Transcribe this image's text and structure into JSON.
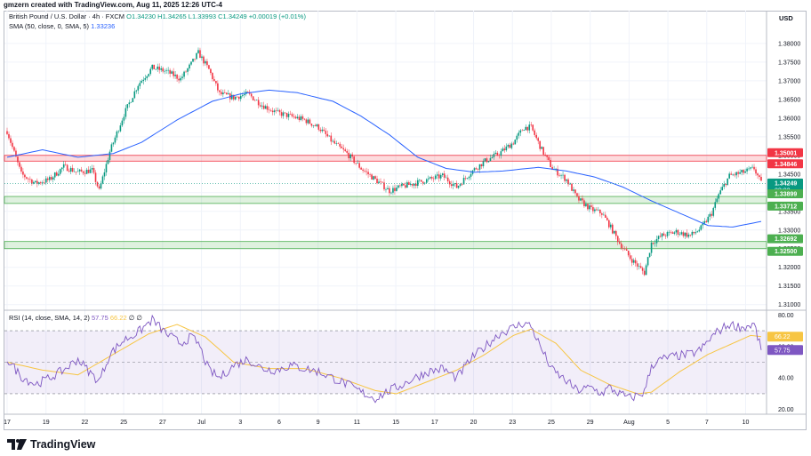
{
  "header_text": "gmzern created with TradingView.com, Aug 11, 2025 12:26 UTC-4",
  "legend": {
    "symbol": "British Pound / U.S. Dollar · 4h · FXCM",
    "ohlc": "O1.34230 H1.34265 L1.33993 C1.34249 +0.00019 (+0.01%)",
    "sma": "SMA (50, close, 0, SMA, 5)",
    "sma_value": "1.33236",
    "rsi": "RSI (14, close, SMA, 14, 2)",
    "rsi_value": "57.75",
    "rsi_ma_value": "66.22",
    "rsi_extra": "∅ ∅"
  },
  "currency": "USD",
  "brand": "TradingView",
  "colors": {
    "up": "#089981",
    "down": "#f23645",
    "sma": "#2962ff",
    "rsi": "#7e57c2",
    "rsi_ma": "#f7c543",
    "resistance": "#f23645",
    "support": "#4caf50"
  },
  "chart_data": [
    {
      "type": "candlestick",
      "pair": "GBP/USD",
      "timeframe": "4h",
      "y_ticks": [
        "1.38000",
        "1.37500",
        "1.37000",
        "1.36500",
        "1.36000",
        "1.35500",
        "1.35000",
        "1.34500",
        "1.34000",
        "1.33500",
        "1.33000",
        "1.32500",
        "1.32000",
        "1.31500",
        "1.31000"
      ],
      "ylim": [
        1.3085,
        1.3845
      ],
      "x_ticks": [
        "17",
        "19",
        "22",
        "25",
        "27",
        "Jul",
        "3",
        "6",
        "9",
        "11",
        "15",
        "17",
        "20",
        "23",
        "25",
        "29",
        "Aug",
        "5",
        "7",
        "10"
      ],
      "resistance_zone": {
        "upper": 1.35001,
        "lower": 1.34846
      },
      "support_zones": [
        {
          "upper": 1.33899,
          "lower": 1.33712
        },
        {
          "upper": 1.32692,
          "lower": 1.325
        }
      ],
      "price_labels": [
        {
          "value": "1.35001",
          "kind": "resistance"
        },
        {
          "value": "1.34846",
          "kind": "resistance"
        },
        {
          "value": "1.34249",
          "kind": "last",
          "countdown": "33:03"
        },
        {
          "value": "1.33899",
          "kind": "support"
        },
        {
          "value": "1.33712",
          "kind": "support"
        },
        {
          "value": "1.32692",
          "kind": "support"
        },
        {
          "value": "1.32500",
          "kind": "support"
        }
      ],
      "last_close": 1.34249,
      "sma_last": 1.33236,
      "close_anchors": [
        [
          0,
          1.3565
        ],
        [
          8,
          1.345
        ],
        [
          16,
          1.3425
        ],
        [
          24,
          1.3435
        ],
        [
          32,
          1.347
        ],
        [
          40,
          1.3455
        ],
        [
          48,
          1.346
        ],
        [
          52,
          1.3405
        ],
        [
          58,
          1.351
        ],
        [
          66,
          1.361
        ],
        [
          74,
          1.369
        ],
        [
          82,
          1.3735
        ],
        [
          90,
          1.3725
        ],
        [
          98,
          1.3705
        ],
        [
          104,
          1.3745
        ],
        [
          108,
          1.3775
        ],
        [
          114,
          1.373
        ],
        [
          120,
          1.3665
        ],
        [
          128,
          1.3655
        ],
        [
          136,
          1.3665
        ],
        [
          144,
          1.3635
        ],
        [
          152,
          1.3615
        ],
        [
          160,
          1.3605
        ],
        [
          168,
          1.3595
        ],
        [
          176,
          1.3575
        ],
        [
          184,
          1.3535
        ],
        [
          192,
          1.3505
        ],
        [
          200,
          1.3465
        ],
        [
          208,
          1.3435
        ],
        [
          216,
          1.3405
        ],
        [
          222,
          1.3415
        ],
        [
          230,
          1.3425
        ],
        [
          238,
          1.3435
        ],
        [
          246,
          1.3445
        ],
        [
          254,
          1.3415
        ],
        [
          262,
          1.3455
        ],
        [
          270,
          1.3485
        ],
        [
          278,
          1.3505
        ],
        [
          286,
          1.3535
        ],
        [
          292,
          1.3575
        ],
        [
          296,
          1.3575
        ],
        [
          302,
          1.3515
        ],
        [
          308,
          1.3465
        ],
        [
          316,
          1.3435
        ],
        [
          322,
          1.3385
        ],
        [
          330,
          1.3355
        ],
        [
          336,
          1.3345
        ],
        [
          340,
          1.3315
        ],
        [
          346,
          1.3265
        ],
        [
          352,
          1.3225
        ],
        [
          356,
          1.3205
        ],
        [
          360,
          1.3185
        ],
        [
          364,
          1.3265
        ],
        [
          370,
          1.3285
        ],
        [
          378,
          1.3295
        ],
        [
          386,
          1.3285
        ],
        [
          392,
          1.3305
        ],
        [
          398,
          1.3345
        ],
        [
          402,
          1.3395
        ],
        [
          408,
          1.3445
        ],
        [
          416,
          1.3455
        ],
        [
          422,
          1.3465
        ],
        [
          424,
          1.3445
        ],
        [
          426,
          1.3425
        ]
      ],
      "sma_anchors": [
        [
          0,
          1.3495
        ],
        [
          20,
          1.3515
        ],
        [
          40,
          1.3495
        ],
        [
          60,
          1.3505
        ],
        [
          76,
          1.3535
        ],
        [
          96,
          1.3595
        ],
        [
          116,
          1.3645
        ],
        [
          132,
          1.3665
        ],
        [
          148,
          1.3675
        ],
        [
          164,
          1.3668
        ],
        [
          184,
          1.3645
        ],
        [
          200,
          1.3605
        ],
        [
          216,
          1.3555
        ],
        [
          232,
          1.3495
        ],
        [
          248,
          1.3465
        ],
        [
          264,
          1.3455
        ],
        [
          280,
          1.3458
        ],
        [
          300,
          1.3468
        ],
        [
          316,
          1.3458
        ],
        [
          332,
          1.3442
        ],
        [
          348,
          1.3415
        ],
        [
          364,
          1.3378
        ],
        [
          380,
          1.3345
        ],
        [
          396,
          1.3312
        ],
        [
          410,
          1.3308
        ],
        [
          426,
          1.3323
        ]
      ]
    },
    {
      "type": "line",
      "name": "RSI (14)",
      "y_ticks": [
        "80.00",
        "60.00",
        "40.00",
        "20.00"
      ],
      "ylim": [
        17,
        83
      ],
      "bands": {
        "upper": 70,
        "middle": 50,
        "lower": 30
      },
      "last_value": 57.75,
      "ma_last_value": 66.22,
      "rsi_anchors": [
        [
          0,
          52
        ],
        [
          8,
          41
        ],
        [
          16,
          36
        ],
        [
          24,
          40
        ],
        [
          32,
          45
        ],
        [
          40,
          52
        ],
        [
          48,
          42
        ],
        [
          52,
          38
        ],
        [
          58,
          55
        ],
        [
          66,
          64
        ],
        [
          74,
          69
        ],
        [
          82,
          77
        ],
        [
          90,
          68
        ],
        [
          98,
          62
        ],
        [
          104,
          66
        ],
        [
          108,
          62
        ],
        [
          114,
          45
        ],
        [
          120,
          40
        ],
        [
          128,
          48
        ],
        [
          136,
          52
        ],
        [
          144,
          46
        ],
        [
          152,
          45
        ],
        [
          160,
          48
        ],
        [
          168,
          46
        ],
        [
          176,
          44
        ],
        [
          184,
          40
        ],
        [
          192,
          36
        ],
        [
          200,
          31
        ],
        [
          208,
          27
        ],
        [
          216,
          32
        ],
        [
          222,
          35
        ],
        [
          230,
          40
        ],
        [
          238,
          44
        ],
        [
          246,
          46
        ],
        [
          254,
          40
        ],
        [
          262,
          52
        ],
        [
          270,
          60
        ],
        [
          278,
          68
        ],
        [
          286,
          72
        ],
        [
          292,
          75
        ],
        [
          296,
          73
        ],
        [
          302,
          58
        ],
        [
          308,
          45
        ],
        [
          316,
          38
        ],
        [
          322,
          32
        ],
        [
          330,
          34
        ],
        [
          336,
          30
        ],
        [
          340,
          34
        ],
        [
          346,
          30
        ],
        [
          352,
          27
        ],
        [
          356,
          29
        ],
        [
          360,
          31
        ],
        [
          364,
          48
        ],
        [
          370,
          52
        ],
        [
          378,
          54
        ],
        [
          386,
          55
        ],
        [
          392,
          58
        ],
        [
          398,
          66
        ],
        [
          402,
          70
        ],
        [
          408,
          74
        ],
        [
          416,
          72
        ],
        [
          422,
          74
        ],
        [
          424,
          66
        ],
        [
          426,
          57.75
        ]
      ],
      "rsi_ma_anchors": [
        [
          0,
          50
        ],
        [
          20,
          45
        ],
        [
          40,
          42
        ],
        [
          60,
          55
        ],
        [
          80,
          68
        ],
        [
          96,
          74
        ],
        [
          112,
          66
        ],
        [
          128,
          50
        ],
        [
          148,
          46
        ],
        [
          168,
          46
        ],
        [
          188,
          40
        ],
        [
          208,
          32
        ],
        [
          220,
          30
        ],
        [
          236,
          37
        ],
        [
          254,
          45
        ],
        [
          270,
          55
        ],
        [
          286,
          67
        ],
        [
          296,
          71
        ],
        [
          310,
          62
        ],
        [
          324,
          45
        ],
        [
          340,
          36
        ],
        [
          356,
          30
        ],
        [
          364,
          31
        ],
        [
          380,
          44
        ],
        [
          396,
          55
        ],
        [
          410,
          62
        ],
        [
          420,
          67
        ],
        [
          426,
          66.22
        ]
      ]
    }
  ]
}
